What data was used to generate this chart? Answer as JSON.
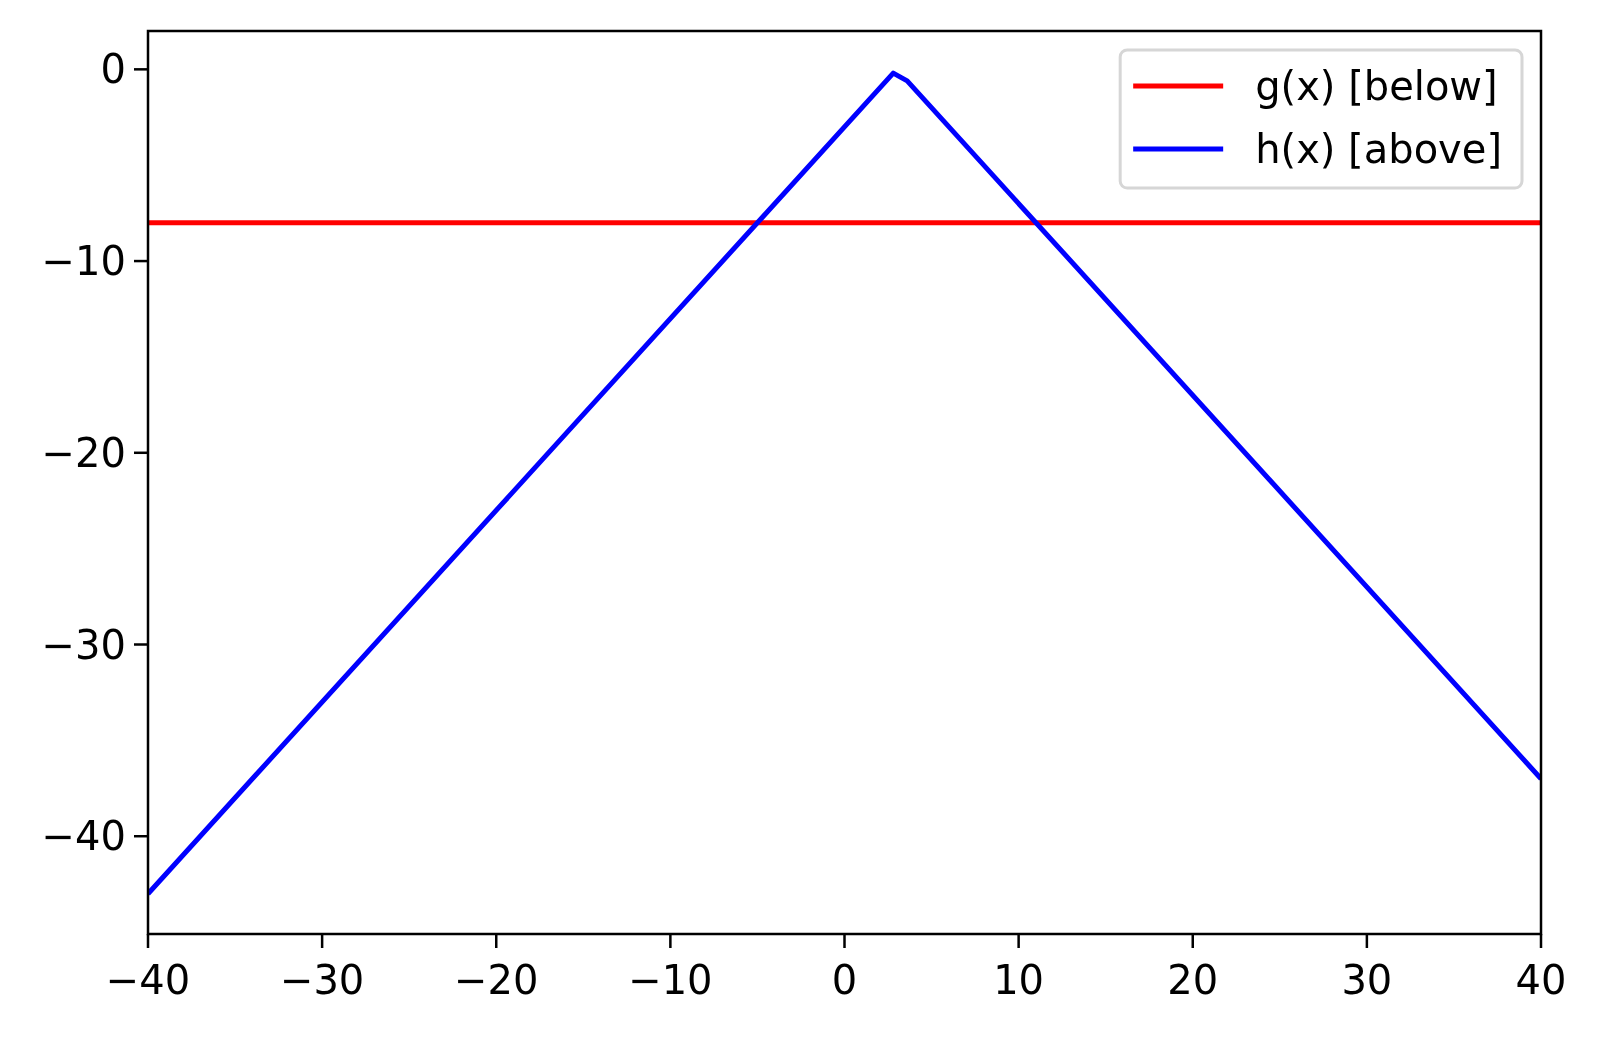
{
  "chart_data": {
    "type": "line",
    "xlim": [
      -40,
      40
    ],
    "ylim": [
      -45.1,
      2
    ],
    "xticks": [
      {
        "value": -40,
        "label": "−40"
      },
      {
        "value": -30,
        "label": "−30"
      },
      {
        "value": -20,
        "label": "−20"
      },
      {
        "value": -10,
        "label": "−10"
      },
      0,
      10,
      20,
      30,
      40
    ],
    "yticks": [
      0,
      {
        "value": -10,
        "label": "−10"
      },
      {
        "value": -20,
        "label": "−20"
      },
      {
        "value": -30,
        "label": "−30"
      },
      {
        "value": -40,
        "label": "−40"
      }
    ],
    "legend": "top right",
    "series": [
      {
        "name": "g(x) [below]",
        "color": "#ff0000",
        "x": [
          -40,
          40
        ],
        "values": [
          -8,
          -8
        ]
      },
      {
        "name": "h(x) [above]",
        "color": "#0000ff",
        "x": [
          -40,
          2.8,
          3.6,
          40
        ],
        "values": [
          -43,
          -0.2,
          -0.6,
          -37
        ]
      }
    ]
  }
}
